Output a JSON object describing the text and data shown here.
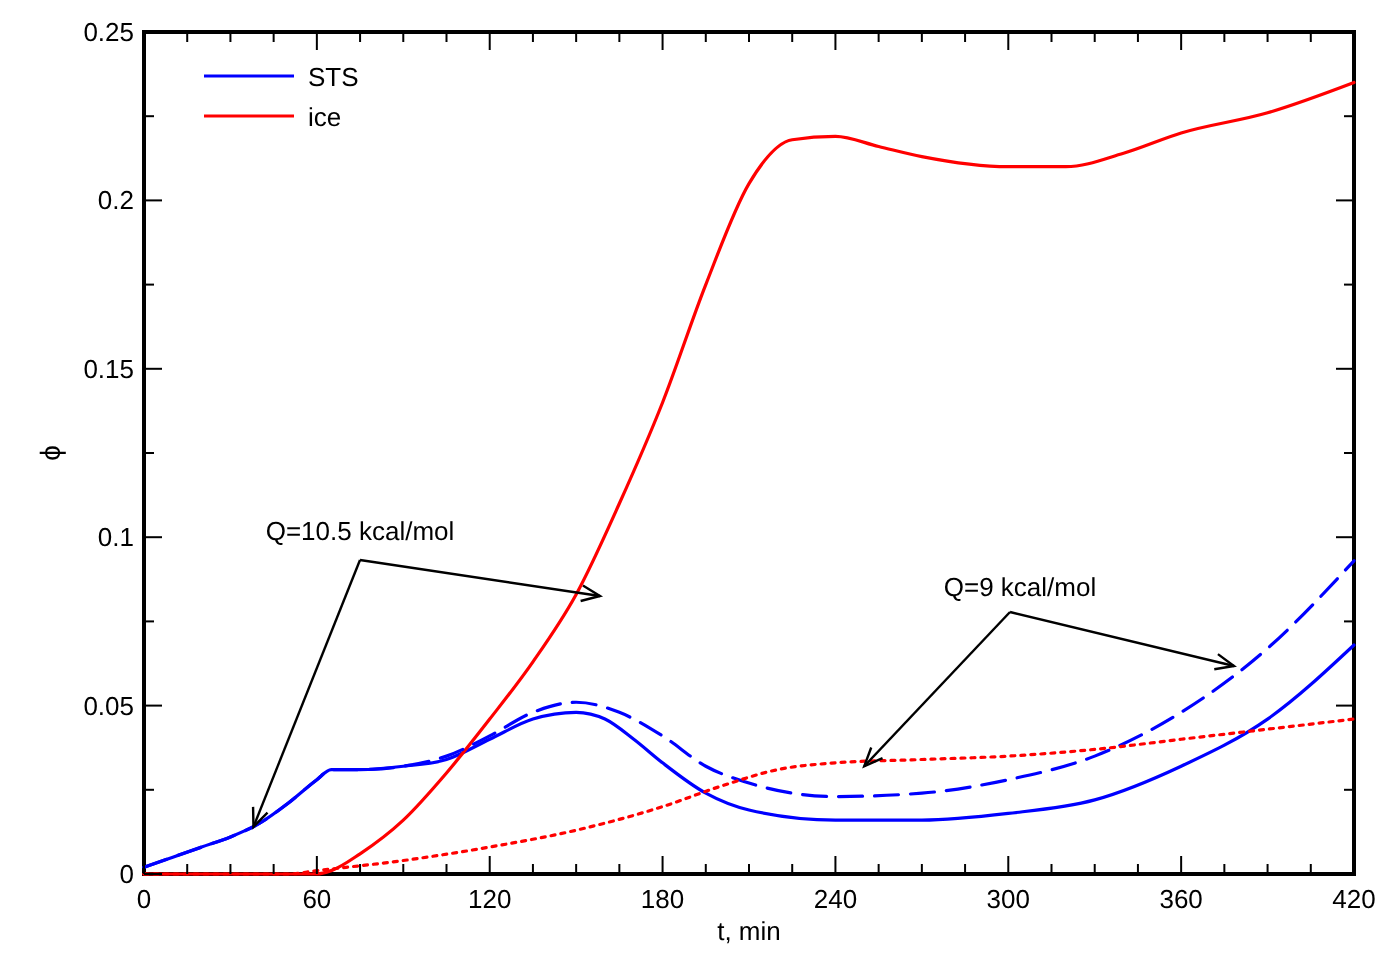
{
  "chart_data": {
    "type": "line",
    "xlabel": "t, min",
    "ylabel": "ϕ",
    "xlim": [
      0,
      420
    ],
    "ylim": [
      0,
      0.25
    ],
    "xticks": [
      0,
      60,
      120,
      180,
      240,
      300,
      360,
      420
    ],
    "yticks": [
      0,
      0.05,
      0.1,
      0.15,
      0.2,
      0.25
    ],
    "grid": false,
    "legend": "top left",
    "annotations": [
      {
        "text": "Q=10.5 kcal/mol",
        "x": 38,
        "y": 0.014
      },
      {
        "text": "Q=9 kcal/mol",
        "x": 250,
        "y": 0.032
      }
    ],
    "series": [
      {
        "name": "STS",
        "color": "#0000ff",
        "line_style": "solid",
        "x": [
          0,
          10,
          20,
          30,
          40,
          50,
          60,
          65,
          75,
          90,
          105,
          120,
          135,
          150,
          160,
          170,
          180,
          195,
          210,
          240,
          270,
          300,
          330,
          360,
          390,
          420
        ],
        "values": [
          0.002,
          0.005,
          0.008,
          0.011,
          0.015,
          0.021,
          0.028,
          0.031,
          0.031,
          0.032,
          0.034,
          0.04,
          0.046,
          0.048,
          0.046,
          0.04,
          0.033,
          0.024,
          0.019,
          0.016,
          0.016,
          0.018,
          0.022,
          0.032,
          0.046,
          0.068
        ]
      },
      {
        "name": "ice",
        "color": "#ff0000",
        "line_style": "solid",
        "x": [
          0,
          60,
          65,
          75,
          90,
          105,
          120,
          135,
          150,
          165,
          180,
          195,
          210,
          225,
          240,
          255,
          270,
          300,
          320,
          340,
          360,
          390,
          420
        ],
        "values": [
          0,
          0,
          0.001,
          0.006,
          0.016,
          0.03,
          0.046,
          0.063,
          0.083,
          0.11,
          0.14,
          0.175,
          0.205,
          0.218,
          0.219,
          0.216,
          0.213,
          0.21,
          0.21,
          0.214,
          0.22,
          0.226,
          0.235
        ]
      },
      {
        "color": "#0000ff",
        "line_style": "dashed",
        "x": [
          0,
          10,
          20,
          30,
          40,
          50,
          60,
          65,
          75,
          90,
          105,
          120,
          135,
          150,
          165,
          180,
          195,
          210,
          240,
          270,
          300,
          330,
          360,
          390,
          420
        ],
        "values": [
          0.002,
          0.005,
          0.008,
          0.011,
          0.015,
          0.021,
          0.028,
          0.031,
          0.031,
          0.032,
          0.035,
          0.041,
          0.048,
          0.051,
          0.048,
          0.041,
          0.032,
          0.027,
          0.023,
          0.024,
          0.028,
          0.035,
          0.048,
          0.067,
          0.093
        ]
      },
      {
        "color": "#ff0000",
        "line_style": "dotted",
        "x": [
          0,
          50,
          60,
          90,
          120,
          150,
          180,
          200,
          220,
          240,
          270,
          300,
          330,
          360,
          390,
          420
        ],
        "values": [
          0,
          0,
          0.001,
          0.004,
          0.008,
          0.013,
          0.02,
          0.026,
          0.031,
          0.033,
          0.034,
          0.035,
          0.037,
          0.04,
          0.043,
          0.046
        ]
      }
    ]
  }
}
